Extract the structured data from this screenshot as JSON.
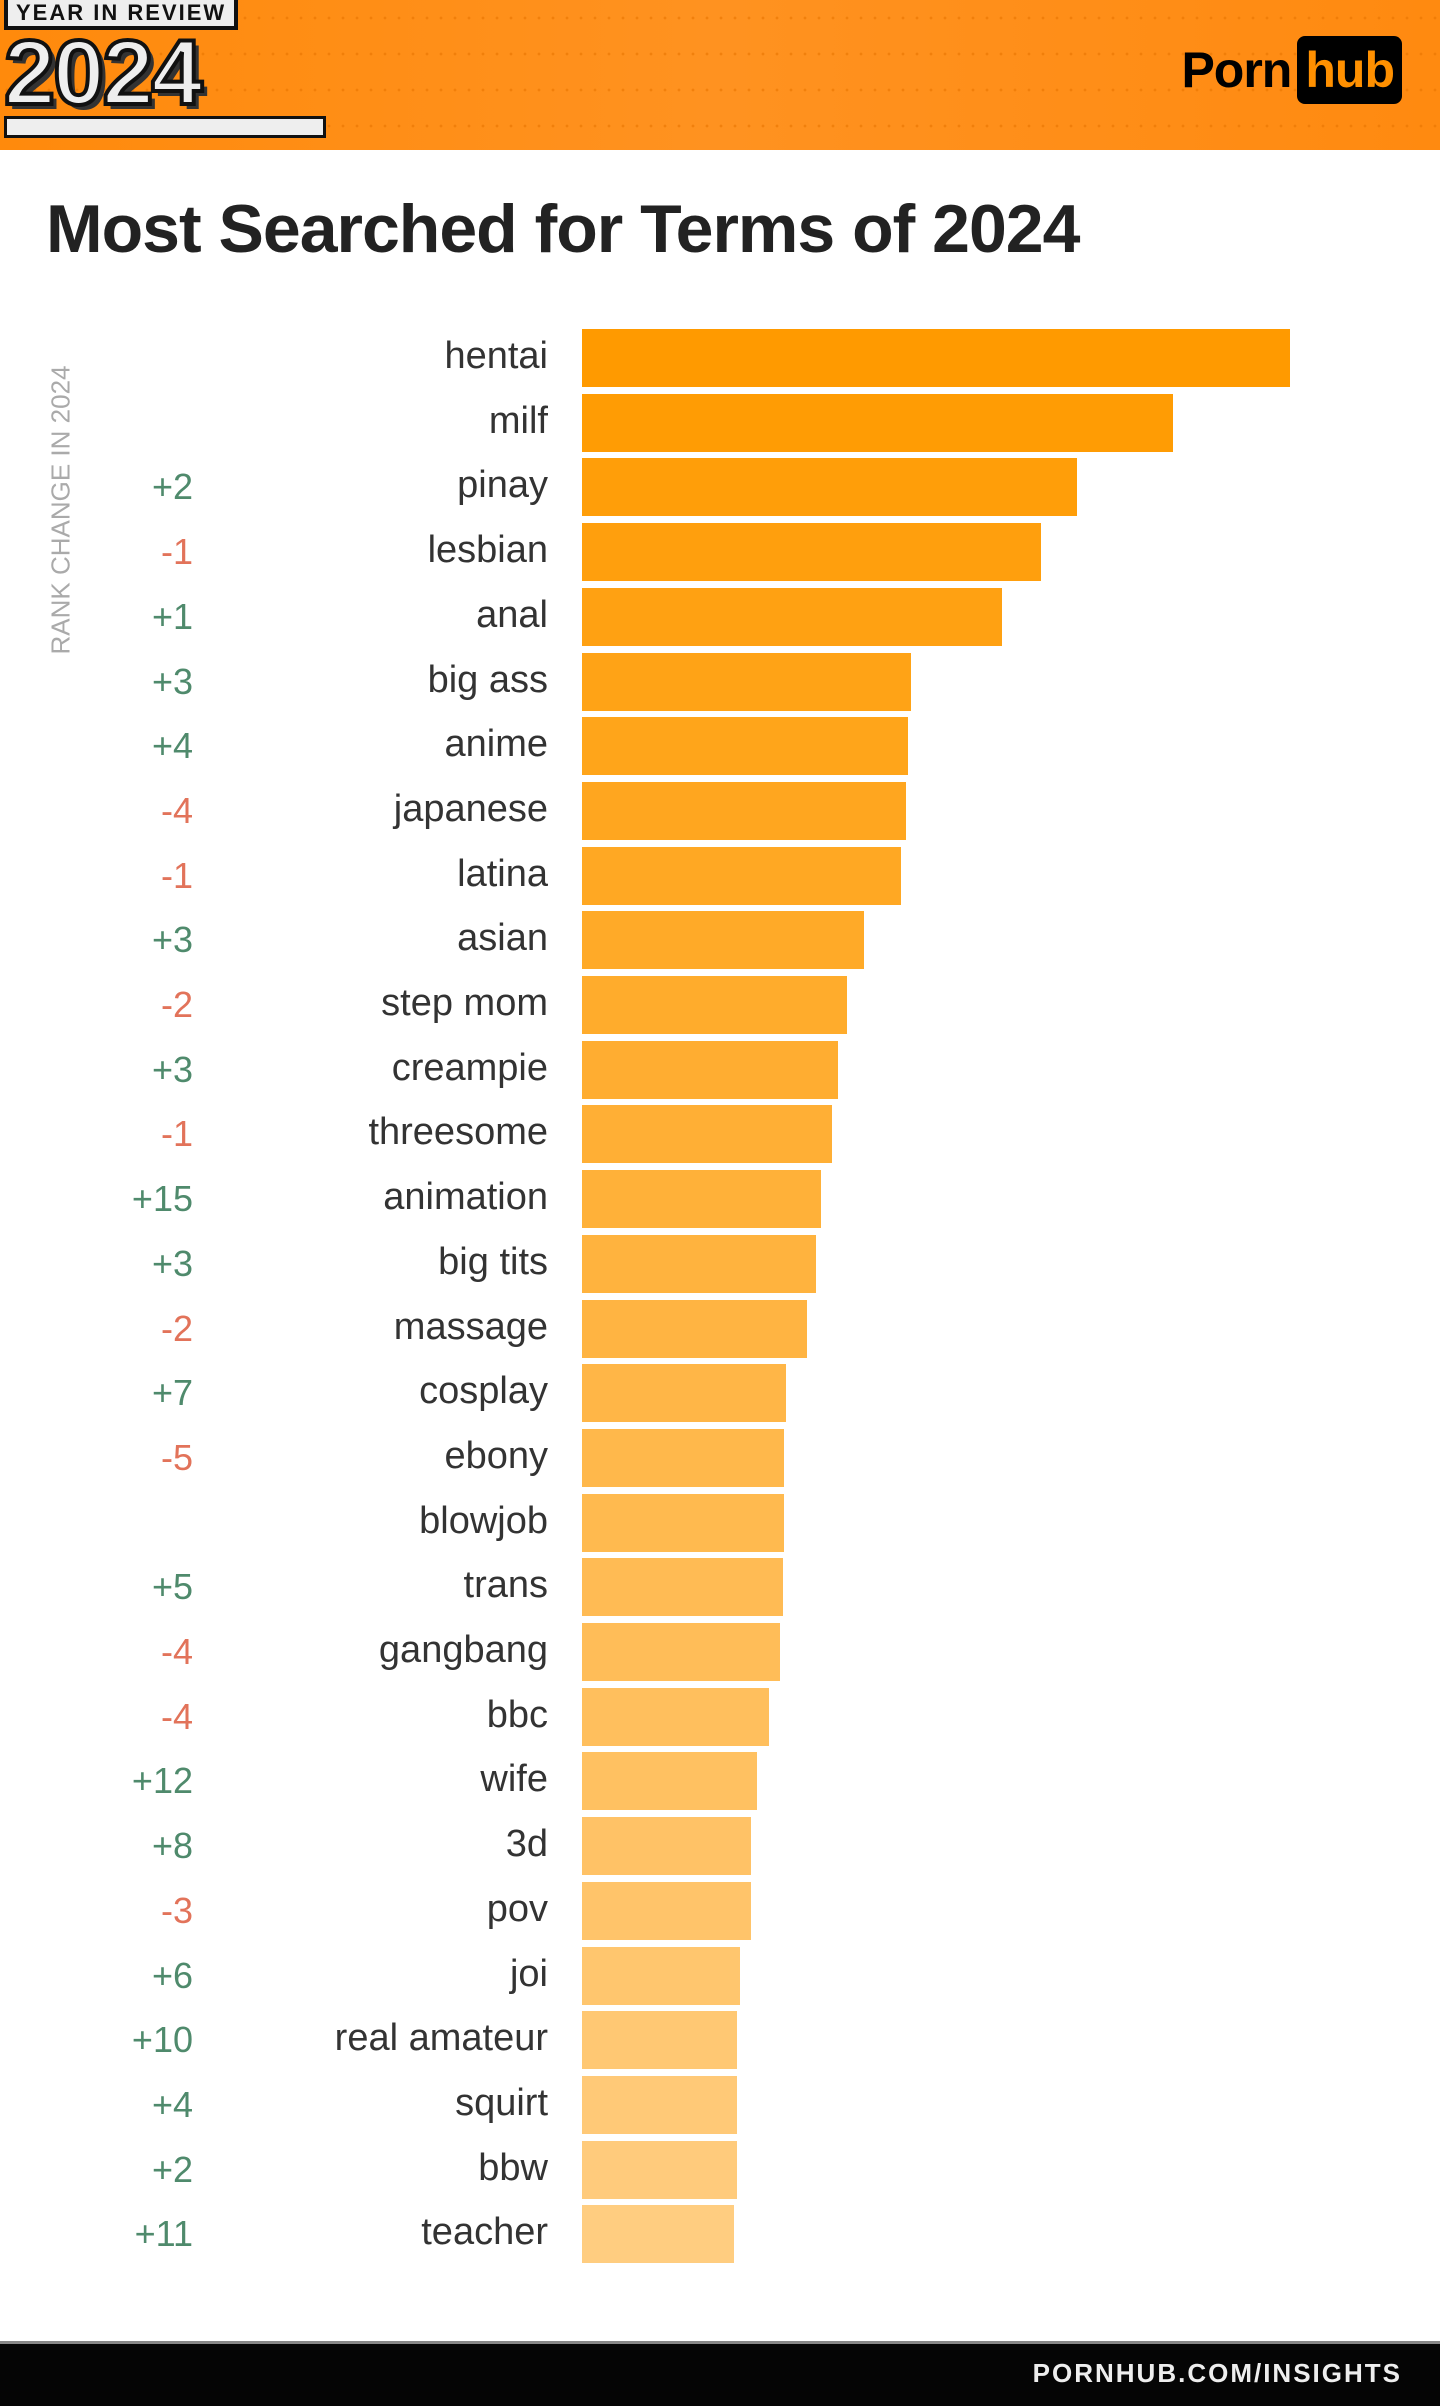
{
  "header": {
    "badge_top": "YEAR IN REVIEW",
    "badge_year": "2024",
    "logo_left": "Porn",
    "logo_right": "hub"
  },
  "footer": {
    "url": "PORNHUB.COM/INSIGHTS"
  },
  "colors": {
    "bar_top": "#ff9a00",
    "bar_bottom": "#ffcd80",
    "positive": "#4f8a6c",
    "negative": "#e2735a",
    "header": "#ff8c12"
  },
  "chart_data": {
    "type": "bar",
    "orientation": "horizontal",
    "title": "Most Searched for Terms of 2024",
    "side_label": "RANK CHANGE IN 2024",
    "value_note": "relative search volume, hentai = 100 (no axis printed)",
    "categories": [
      "hentai",
      "milf",
      "pinay",
      "lesbian",
      "anal",
      "big ass",
      "anime",
      "japanese",
      "latina",
      "asian",
      "step mom",
      "creampie",
      "threesome",
      "animation",
      "big tits",
      "massage",
      "cosplay",
      "ebony",
      "blowjob",
      "trans",
      "gangbang",
      "bbc",
      "wife",
      "3d",
      "pov",
      "joi",
      "real amateur",
      "squirt",
      "bbw",
      "teacher"
    ],
    "values": [
      100,
      83.5,
      69.9,
      64.9,
      59.3,
      46.5,
      46.1,
      45.7,
      45.0,
      39.8,
      37.4,
      36.1,
      35.3,
      33.8,
      33.1,
      31.8,
      28.8,
      28.6,
      28.6,
      28.4,
      27.9,
      26.4,
      24.7,
      23.8,
      23.8,
      22.3,
      21.9,
      21.9,
      21.9,
      21.4
    ],
    "rank_change": [
      "",
      "",
      "+2",
      "-1",
      "+1",
      "+3",
      "+4",
      "-4",
      "-1",
      "+3",
      "-2",
      "+3",
      "-1",
      "+15",
      "+3",
      "-2",
      "+7",
      "-5",
      "",
      "+5",
      "-4",
      "-4",
      "+12",
      "+8",
      "-3",
      "+6",
      "+10",
      "+4",
      "+2",
      "+11"
    ]
  }
}
